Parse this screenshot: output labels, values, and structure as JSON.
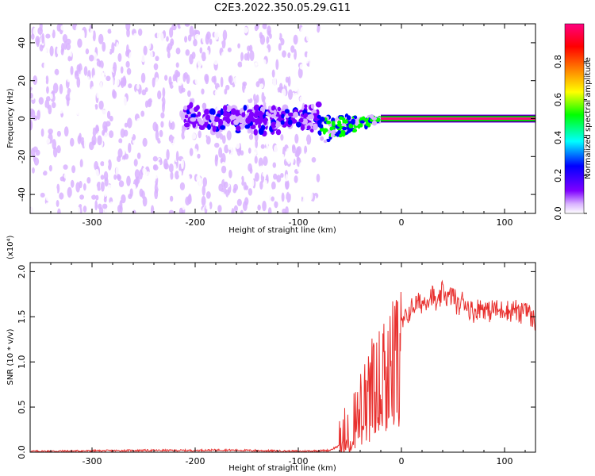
{
  "title": "C2E3.2022.350.05.29.G11",
  "chart_data": [
    {
      "type": "heatmap",
      "title": "C2E3.2022.350.05.29.G11",
      "xlabel": "Height of straight line (km)",
      "ylabel": "Frequency (Hz)",
      "xlim": [
        -360,
        130
      ],
      "ylim": [
        -50,
        50
      ],
      "x_ticks": [
        -300,
        -200,
        -100,
        0,
        100
      ],
      "y_ticks": [
        -40,
        -20,
        0,
        20,
        40
      ],
      "colorbar": {
        "label": "Normalized spectral amplitude",
        "range": [
          0,
          1
        ],
        "ticks": [
          "0.0",
          "0.2",
          "0.4",
          "0.6",
          "0.8"
        ],
        "colors": [
          "#ffffff",
          "#d9b3ff",
          "#7f00ff",
          "#0000ff",
          "#00ffff",
          "#00ff00",
          "#ffff00",
          "#ff8000",
          "#ff0000",
          "#ff0080"
        ]
      },
      "features": [
        {
          "name": "noise",
          "x_range": [
            -360,
            -80
          ],
          "y_range": [
            -50,
            50
          ],
          "amplitude": 0.1
        },
        {
          "name": "band",
          "x_range": [
            -210,
            -80
          ],
          "y_range": [
            -8,
            8
          ],
          "amplitude": 0.2
        },
        {
          "name": "converging-signal",
          "x_range": [
            -80,
            -20
          ],
          "y_range": [
            -12,
            3
          ],
          "amplitude": 0.4
        },
        {
          "name": "carrier",
          "x_range": [
            -20,
            130
          ],
          "y_center": 0,
          "amplitude": 0.95
        }
      ]
    },
    {
      "type": "line",
      "xlabel": "Height of straight line (km)",
      "ylabel": "SNR (10 * v/v)",
      "y_multiplier": "(x10⁴)",
      "xlim": [
        -360,
        130
      ],
      "ylim": [
        0,
        2.1
      ],
      "x_ticks": [
        -300,
        -200,
        -100,
        0,
        100
      ],
      "y_ticks": [
        "0.0",
        "0.5",
        "1.0",
        "1.5",
        "2.0"
      ],
      "series": [
        {
          "color": "#e8302e",
          "x": [
            -360,
            -300,
            -250,
            -200,
            -175,
            -150,
            -100,
            -70,
            -55,
            -45,
            -40,
            -35,
            -30,
            -25,
            -20,
            -15,
            -10,
            -5,
            0,
            5,
            10,
            15,
            20,
            25,
            30,
            35,
            40,
            45,
            50,
            55,
            60,
            65,
            70,
            75,
            80,
            85,
            90,
            95,
            100,
            105,
            110,
            115,
            120,
            125,
            130
          ],
          "y": [
            0.01,
            0.015,
            0.02,
            0.02,
            0.025,
            0.02,
            0.01,
            0.02,
            0.1,
            0.3,
            0.5,
            0.6,
            0.8,
            0.9,
            1.0,
            1.1,
            1.3,
            1.35,
            1.4,
            1.5,
            1.6,
            1.65,
            1.65,
            1.7,
            1.75,
            1.6,
            1.8,
            1.7,
            1.75,
            1.6,
            1.7,
            1.6,
            1.55,
            1.6,
            1.6,
            1.55,
            1.6,
            1.55,
            1.6,
            1.55,
            1.6,
            1.5,
            1.65,
            1.5,
            1.45
          ]
        }
      ]
    }
  ]
}
